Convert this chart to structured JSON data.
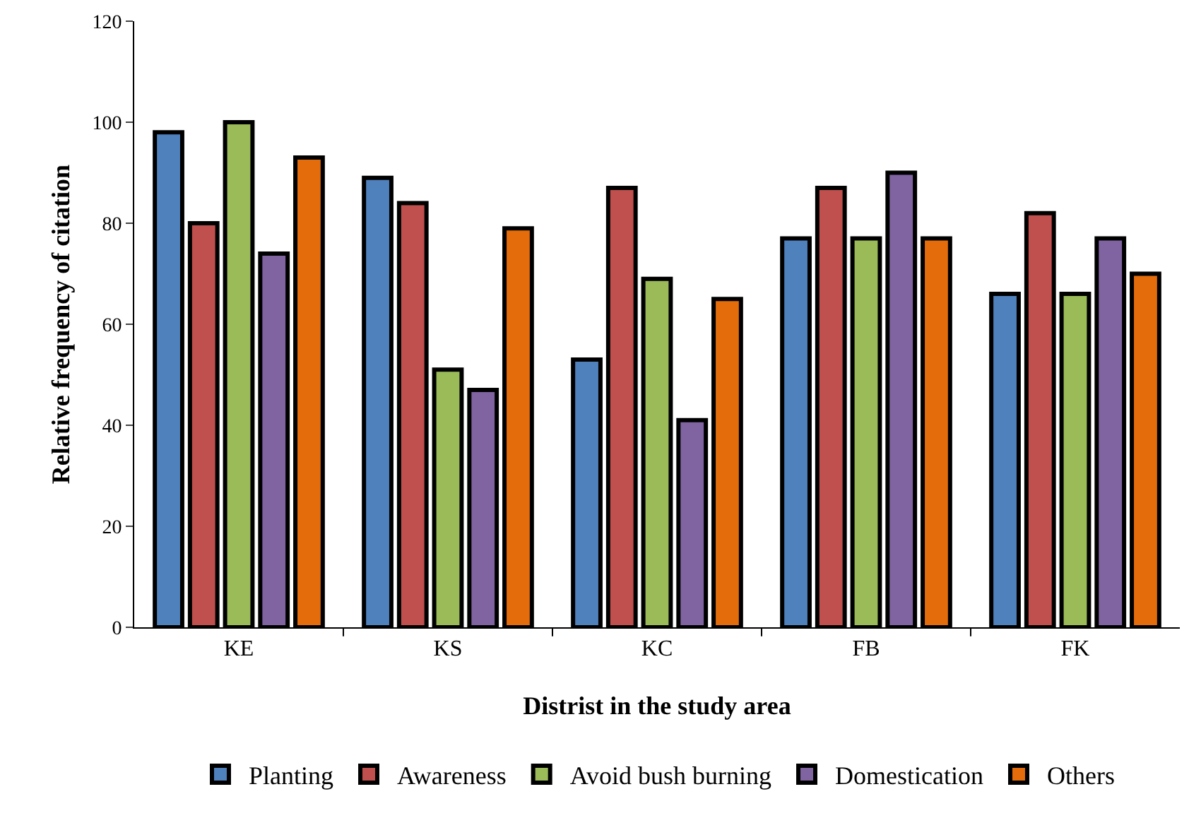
{
  "chart_data": {
    "type": "bar",
    "xlabel": "Distrist in the study area",
    "ylabel": "Relative frequency of citation",
    "categories": [
      "KE",
      "KS",
      "KC",
      "FB",
      "FK"
    ],
    "series": [
      {
        "name": "Planting",
        "color": "#4f81bd",
        "values": [
          98,
          89,
          53,
          77,
          66
        ]
      },
      {
        "name": "Awareness",
        "color": "#c0504d",
        "values": [
          80,
          84,
          87,
          87,
          82
        ]
      },
      {
        "name": "Avoid bush burning",
        "color": "#9bbb59",
        "values": [
          100,
          51,
          69,
          77,
          66
        ]
      },
      {
        "name": "Domestication",
        "color": "#8064a2",
        "values": [
          74,
          47,
          41,
          90,
          77
        ]
      },
      {
        "name": "Others",
        "color": "#e46c0a",
        "values": [
          93,
          79,
          65,
          77,
          70
        ]
      }
    ],
    "ylim": [
      0,
      120
    ],
    "yticks": [
      0,
      20,
      40,
      60,
      80,
      100,
      120
    ],
    "grid": false,
    "legend": "bottom"
  }
}
